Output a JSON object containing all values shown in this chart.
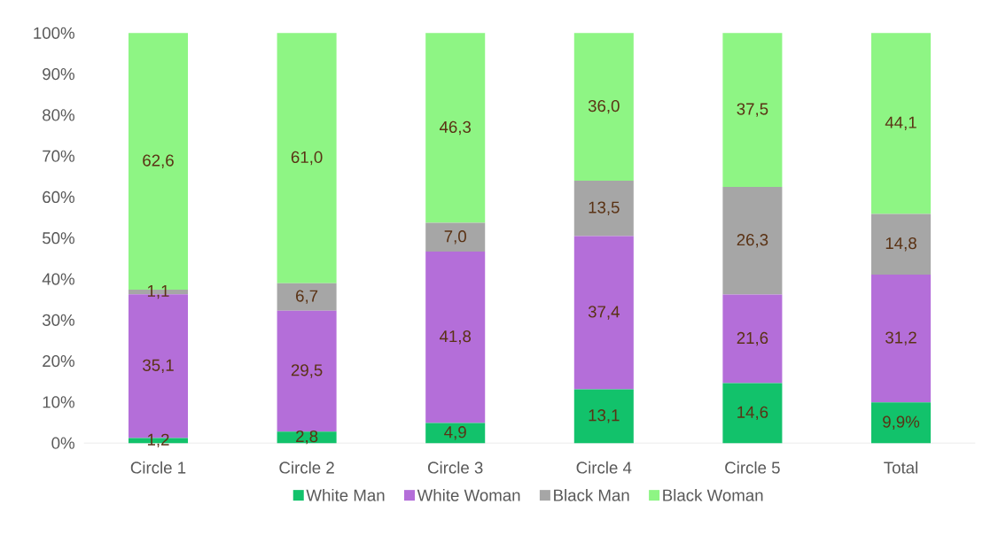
{
  "chart_data": {
    "type": "bar",
    "stacked": true,
    "categories": [
      "Circle 1",
      "Circle 2",
      "Circle 3",
      "Circle 4",
      "Circle 5",
      "Total"
    ],
    "series": [
      {
        "name": "White Man",
        "color": "#12c26b",
        "values": [
          1.2,
          2.8,
          4.9,
          13.1,
          14.6,
          9.9
        ],
        "value_labels": [
          "1,2",
          "2,8",
          "4,9",
          "13,1",
          "14,6",
          "9,9%"
        ]
      },
      {
        "name": "White Woman",
        "color": "#b46ed9",
        "values": [
          35.1,
          29.5,
          41.8,
          37.4,
          21.6,
          31.2
        ],
        "value_labels": [
          "35,1",
          "29,5",
          "41,8",
          "37,4",
          "21,6",
          "31,2"
        ]
      },
      {
        "name": "Black Man",
        "color": "#a6a6a6",
        "values": [
          1.1,
          6.7,
          7.0,
          13.5,
          26.3,
          14.8
        ],
        "value_labels": [
          "1,1",
          "6,7",
          "7,0",
          "13,5",
          "26,3",
          "14,8"
        ]
      },
      {
        "name": "Black Woman",
        "color": "#8ef584",
        "values": [
          62.6,
          61.0,
          46.3,
          36.0,
          37.5,
          44.1
        ],
        "value_labels": [
          "62,6",
          "61,0",
          "46,3",
          "36,0",
          "37,5",
          "44,1"
        ]
      }
    ],
    "ylim": [
      0,
      100
    ],
    "yticks": [
      {
        "value": 0,
        "label": "0%"
      },
      {
        "value": 10,
        "label": "10%"
      },
      {
        "value": 20,
        "label": "20%"
      },
      {
        "value": 30,
        "label": "30%"
      },
      {
        "value": 40,
        "label": "40%"
      },
      {
        "value": 50,
        "label": "50%"
      },
      {
        "value": 60,
        "label": "60%"
      },
      {
        "value": 70,
        "label": "70%"
      },
      {
        "value": 80,
        "label": "80%"
      },
      {
        "value": 90,
        "label": "90%"
      },
      {
        "value": 100,
        "label": "100%"
      }
    ],
    "legend": "bottom"
  }
}
